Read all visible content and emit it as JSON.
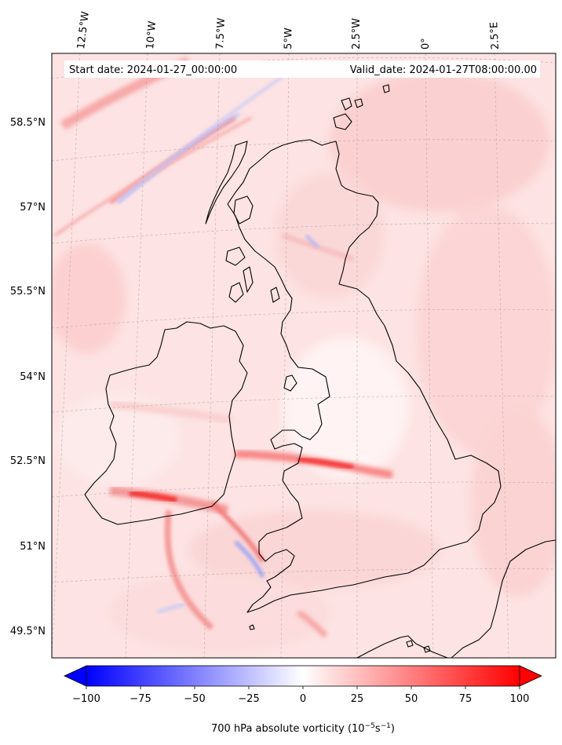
{
  "map": {
    "start_label": "Start date: 2024-01-27_00:00:00",
    "valid_label": "Valid_date: 2024-01-27T08:00:00.00",
    "lon_labels": [
      "12.5°W",
      "10°W",
      "7.5°W",
      "5°W",
      "2.5°W",
      "0°",
      "2.5°E"
    ],
    "lat_labels": [
      "58.5°N",
      "57°N",
      "55.5°N",
      "54°N",
      "52.5°N",
      "51°N",
      "49.5°N"
    ]
  },
  "colorbar": {
    "ticks": [
      "−100",
      "−75",
      "−50",
      "−25",
      "0",
      "25",
      "50",
      "75",
      "100"
    ],
    "title": "700 hPa absolute vorticity (10",
    "title_exp1": "−5",
    "title_mid": "s",
    "title_exp2": "−1",
    "title_end": ")",
    "min": -100,
    "max": 100,
    "min_color": "#0000ff",
    "mid_color": "#ffffff",
    "max_color": "#ff0000"
  }
}
